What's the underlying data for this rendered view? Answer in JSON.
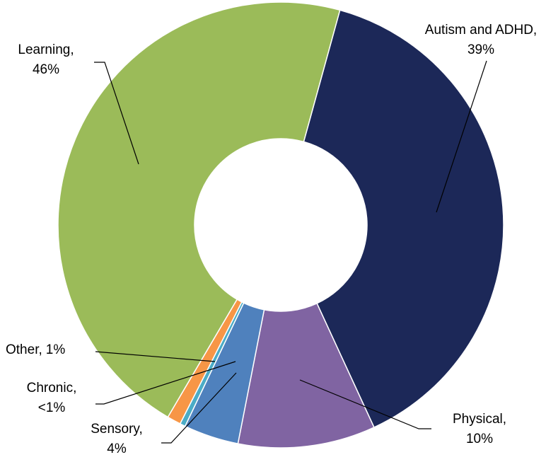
{
  "chart_data": {
    "type": "donut",
    "categories": [
      "Autism and ADHD",
      "Physical",
      "Sensory",
      "Chronic",
      "Other",
      "Learning"
    ],
    "values": [
      39,
      10,
      4,
      0.4,
      1,
      46
    ],
    "value_labels": [
      "39%",
      "10%",
      "4%",
      "<1%",
      "1%",
      "46%"
    ],
    "label_separator": ",",
    "colors": [
      "#1c2858",
      "#8064a2",
      "#4f81bd",
      "#4bacc6",
      "#f79646",
      "#9bbb59"
    ]
  }
}
